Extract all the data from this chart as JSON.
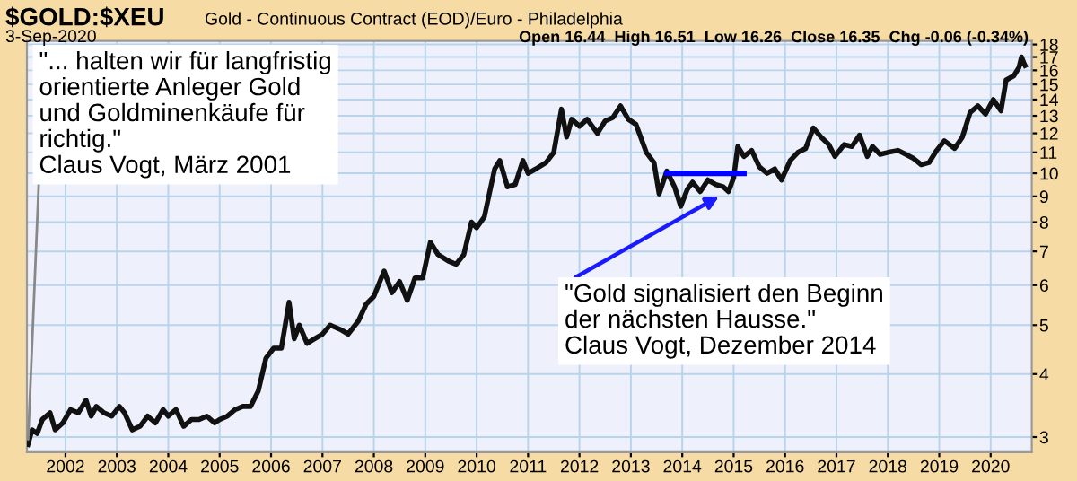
{
  "chart_data": {
    "type": "line",
    "title": "$GOLD:$XEU",
    "subtitle": "Gold - Continuous Contract (EOD)/Euro - Philadelphia",
    "annotations": [
      "3-Sep-2020",
      "Open 16.44  High 16.51  Low 16.26  Close 16.35  Chg -0.06 (-0.34%)",
      {
        "text": "\"... halten wir für langfristig\norientierte Anleger Gold\nund Goldminenkäufe für\nrichtig.\"\nClaus Vogt, März 2001",
        "x": 2001.27,
        "y": 2.9
      },
      {
        "text": "\"Gold signalisiert den Beginn\nder nächsten Hausse.\"\nClaus Vogt, Dezember 2014",
        "x": 2014.8,
        "y": 9.1
      }
    ],
    "log": "y",
    "grid": true,
    "legend": false,
    "marker": "none",
    "line_style": "solid",
    "xlim": [
      2001.25,
      2020.8
    ],
    "ylim": [
      2.8,
      18.3
    ],
    "xticks": [
      2002,
      2003,
      2004,
      2005,
      2006,
      2007,
      2008,
      2009,
      2010,
      2011,
      2012,
      2013,
      2014,
      2015,
      2016,
      2017,
      2018,
      2019,
      2020
    ],
    "yticks": [
      3,
      4,
      5,
      6,
      7,
      8,
      9,
      10,
      11,
      12,
      13,
      14,
      15,
      16,
      17,
      18
    ],
    "series": [
      {
        "color": "#111111",
        "x": [
          2001.27,
          2001.35,
          2001.45,
          2001.55,
          2001.7,
          2001.8,
          2001.95,
          2002.1,
          2002.25,
          2002.4,
          2002.5,
          2002.6,
          2002.75,
          2002.9,
          2003.05,
          2003.15,
          2003.3,
          2003.45,
          2003.6,
          2003.75,
          2003.9,
          2004.0,
          2004.15,
          2004.3,
          2004.45,
          2004.6,
          2004.75,
          2004.9,
          2005.0,
          2005.15,
          2005.3,
          2005.45,
          2005.6,
          2005.75,
          2005.9,
          2006.05,
          2006.2,
          2006.35,
          2006.45,
          2006.55,
          2006.7,
          2006.85,
          2007.0,
          2007.15,
          2007.35,
          2007.5,
          2007.7,
          2007.85,
          2008.0,
          2008.2,
          2008.35,
          2008.5,
          2008.65,
          2008.8,
          2008.95,
          2009.1,
          2009.25,
          2009.45,
          2009.6,
          2009.75,
          2009.9,
          2010.0,
          2010.15,
          2010.35,
          2010.45,
          2010.6,
          2010.75,
          2010.9,
          2011.0,
          2011.15,
          2011.35,
          2011.5,
          2011.65,
          2011.75,
          2011.85,
          2012.0,
          2012.15,
          2012.35,
          2012.5,
          2012.65,
          2012.8,
          2012.95,
          2013.1,
          2013.3,
          2013.45,
          2013.55,
          2013.7,
          2013.85,
          2013.97,
          2014.1,
          2014.2,
          2014.35,
          2014.5,
          2014.65,
          2014.8,
          2014.9,
          2015.0,
          2015.08,
          2015.2,
          2015.35,
          2015.5,
          2015.65,
          2015.8,
          2015.93,
          2016.1,
          2016.25,
          2016.4,
          2016.55,
          2016.7,
          2016.85,
          2016.97,
          2017.15,
          2017.3,
          2017.45,
          2017.6,
          2017.7,
          2017.85,
          2018.0,
          2018.2,
          2018.35,
          2018.5,
          2018.65,
          2018.8,
          2018.95,
          2019.1,
          2019.3,
          2019.45,
          2019.6,
          2019.75,
          2019.9,
          2020.05,
          2020.2,
          2020.3,
          2020.45,
          2020.55,
          2020.6,
          2020.65,
          2020.67
        ],
        "values": [
          2.9,
          3.1,
          3.05,
          3.25,
          3.35,
          3.1,
          3.2,
          3.4,
          3.35,
          3.55,
          3.3,
          3.45,
          3.35,
          3.3,
          3.45,
          3.35,
          3.1,
          3.15,
          3.3,
          3.2,
          3.4,
          3.3,
          3.4,
          3.15,
          3.25,
          3.25,
          3.3,
          3.2,
          3.25,
          3.3,
          3.4,
          3.45,
          3.45,
          3.7,
          4.3,
          4.5,
          4.5,
          5.55,
          4.7,
          5.0,
          4.6,
          4.7,
          4.8,
          5.0,
          4.9,
          4.8,
          5.1,
          5.5,
          5.7,
          6.4,
          5.8,
          6.1,
          5.6,
          6.2,
          6.2,
          7.3,
          6.9,
          6.7,
          6.6,
          6.9,
          8.0,
          7.8,
          8.2,
          10.2,
          10.6,
          9.4,
          9.5,
          10.6,
          10.0,
          10.2,
          10.5,
          11.0,
          13.4,
          11.8,
          12.8,
          12.4,
          12.8,
          12.0,
          12.7,
          12.9,
          13.6,
          12.8,
          12.5,
          11.0,
          10.5,
          9.1,
          10.1,
          9.4,
          8.6,
          9.3,
          9.6,
          9.2,
          9.7,
          9.5,
          9.4,
          9.2,
          9.8,
          11.3,
          10.8,
          11.1,
          10.3,
          10.0,
          10.2,
          9.7,
          10.6,
          11.0,
          11.2,
          12.3,
          11.8,
          11.4,
          10.8,
          11.4,
          11.3,
          11.9,
          10.8,
          11.3,
          10.9,
          11.0,
          11.1,
          10.9,
          10.7,
          10.4,
          10.5,
          11.1,
          11.6,
          11.2,
          11.8,
          13.2,
          13.6,
          13.1,
          14.0,
          13.3,
          15.3,
          15.6,
          16.2,
          17.0,
          16.5,
          16.35
        ]
      },
      {
        "color": "#0000ff",
        "x": [
          2013.7,
          2015.2
        ],
        "values": [
          10,
          10
        ]
      }
    ]
  }
}
